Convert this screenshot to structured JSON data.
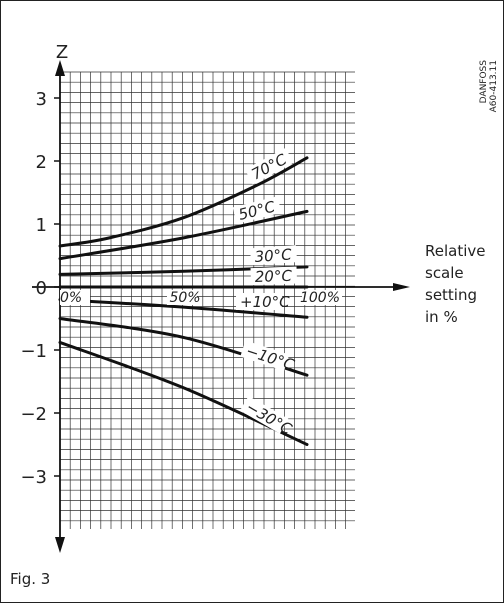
{
  "figure_caption": "Fig. 3",
  "right_label": [
    "Relative",
    "scale",
    "setting",
    "in %"
  ],
  "chart_data": {
    "type": "line",
    "ylabel": "Z",
    "xlabel": "Relative scale setting in %",
    "xlim": [
      0,
      100
    ],
    "ylim": [
      -3.6,
      3.1
    ],
    "yticks": [
      3,
      2,
      1,
      0,
      -1,
      -2,
      -3
    ],
    "ytick_labels": [
      "3",
      "2",
      "1",
      "0",
      "−1",
      "−2",
      "−3"
    ],
    "xtick_labels": [
      "0%",
      "50%",
      "100%"
    ],
    "watermark": [
      "DANFOSS",
      "A60-413.11"
    ],
    "grid": true,
    "series": [
      {
        "name": "70°C",
        "x": [
          0,
          20,
          50,
          80,
          100
        ],
        "values": [
          0.65,
          0.78,
          1.1,
          1.62,
          2.05
        ]
      },
      {
        "name": "50°C",
        "x": [
          0,
          50,
          100
        ],
        "values": [
          0.45,
          0.78,
          1.2
        ]
      },
      {
        "name": "30°C",
        "x": [
          0,
          50,
          100
        ],
        "values": [
          0.2,
          0.25,
          0.32
        ]
      },
      {
        "name": "20°C",
        "x": [
          0,
          50,
          100
        ],
        "values": [
          0.0,
          0.0,
          0.0
        ]
      },
      {
        "name": "+10°C",
        "x": [
          0,
          50,
          100
        ],
        "values": [
          -0.2,
          -0.32,
          -0.48
        ]
      },
      {
        "name": "−10°C",
        "x": [
          0,
          50,
          100
        ],
        "values": [
          -0.5,
          -0.8,
          -1.4
        ]
      },
      {
        "name": "−30°C",
        "x": [
          0,
          50,
          100
        ],
        "values": [
          -0.88,
          -1.6,
          -2.5
        ]
      }
    ]
  }
}
